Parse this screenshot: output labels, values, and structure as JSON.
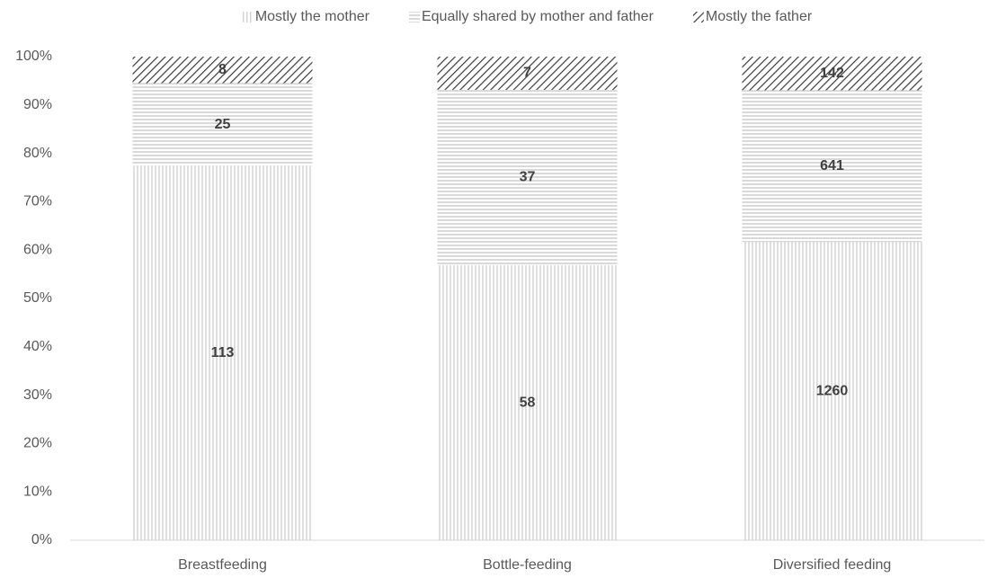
{
  "chart_data": {
    "type": "stacked100",
    "categories": [
      "Breastfeeding",
      "Bottle-feeding",
      "Diversified feeding"
    ],
    "series": [
      {
        "name": "Mostly the mother",
        "color": "#bfbfbf",
        "hatch": "vertical",
        "values": [
          113,
          58,
          1260
        ]
      },
      {
        "name": "Equally shared by mother and father",
        "color": "#bfbfbf",
        "hatch": "horizontal",
        "values": [
          25,
          37,
          641
        ]
      },
      {
        "name": "Mostly the father",
        "color": "#404040",
        "hatch": "diagonal",
        "values": [
          8,
          7,
          142
        ]
      }
    ],
    "ylim": [
      0,
      100
    ],
    "yticks": [
      {
        "value": 0,
        "label": "0%"
      },
      {
        "value": 10,
        "label": "10%"
      },
      {
        "value": 20,
        "label": "20%"
      },
      {
        "value": 30,
        "label": "30%"
      },
      {
        "value": 40,
        "label": "40%"
      },
      {
        "value": 50,
        "label": "50%"
      },
      {
        "value": 60,
        "label": "60%"
      },
      {
        "value": 70,
        "label": "70%"
      },
      {
        "value": 80,
        "label": "80%"
      },
      {
        "value": 90,
        "label": "90%"
      },
      {
        "value": 100,
        "label": "100%"
      }
    ],
    "grid": false,
    "legend": "top"
  }
}
